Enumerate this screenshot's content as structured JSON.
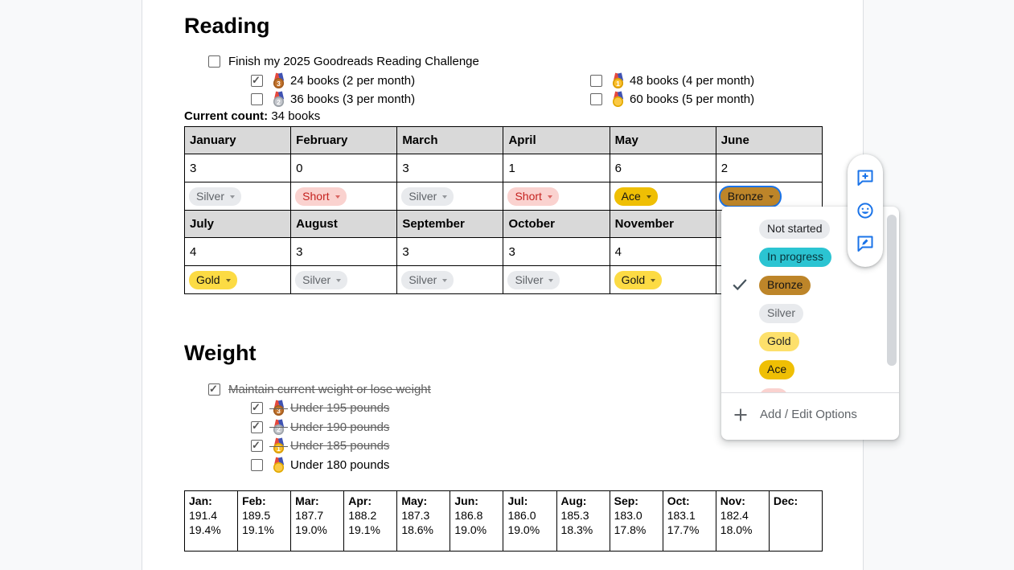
{
  "colors": {
    "page_background": "#f8f9fa",
    "surface": "#ffffff",
    "accent_blue": "#1a73e8",
    "table_header_bg": "#d9d9d9",
    "chip_silver_bg": "#e8eaed",
    "chip_short_bg": "#fad2cf",
    "chip_short_text": "#c5221f",
    "chip_ace_bg": "#efbf04",
    "chip_bronze_bg": "#bd8529",
    "chip_gold_bg": "#fcdb44",
    "chip_gold_light_bg": "#fde06b",
    "chip_in_progress_bg": "#2bc4d2",
    "chip_not_started_bg": "#e8eaed",
    "strikethrough_text": "#616161"
  },
  "reading": {
    "title": "Reading",
    "main_item": {
      "label": "Finish my 2025 Goodreads Reading Challenge",
      "checked": false,
      "struck": false
    },
    "sub_items_left": [
      {
        "medal": "bronze",
        "label": "24 books (2 per month)",
        "checked": true,
        "struck": false
      },
      {
        "medal": "silver",
        "label": "36 books (3 per month)",
        "checked": false,
        "struck": false
      }
    ],
    "sub_items_right": [
      {
        "medal": "gold",
        "label": "48 books (4 per month)",
        "checked": false,
        "struck": false
      },
      {
        "medal": "sports",
        "label": "60 books (5 per month)",
        "checked": false,
        "struck": false
      }
    ],
    "current_count_label": "Current count:",
    "current_count_value": " 34 books",
    "table": {
      "row_groups": [
        {
          "months": [
            "January",
            "February",
            "March",
            "April",
            "May",
            "June"
          ],
          "counts": [
            "3",
            "0",
            "3",
            "1",
            "6",
            "2"
          ],
          "chips": [
            {
              "label": "Silver",
              "style": "silver",
              "selected": false
            },
            {
              "label": "Short",
              "style": "short",
              "selected": false
            },
            {
              "label": "Silver",
              "style": "silver",
              "selected": false
            },
            {
              "label": "Short",
              "style": "short",
              "selected": false
            },
            {
              "label": "Ace",
              "style": "ace",
              "selected": false
            },
            {
              "label": "Bronze",
              "style": "bronze",
              "selected": true
            }
          ]
        },
        {
          "months": [
            "July",
            "August",
            "September",
            "October",
            "November",
            ""
          ],
          "counts": [
            "4",
            "3",
            "3",
            "3",
            "4",
            ""
          ],
          "chips": [
            {
              "label": "Gold",
              "style": "gold",
              "selected": false
            },
            {
              "label": "Silver",
              "style": "silver",
              "selected": false
            },
            {
              "label": "Silver",
              "style": "silver",
              "selected": false
            },
            {
              "label": "Silver",
              "style": "silver",
              "selected": false
            },
            {
              "label": "Gold",
              "style": "gold",
              "selected": false
            },
            null
          ]
        }
      ]
    }
  },
  "dropdown": {
    "options": [
      {
        "label": "Not started",
        "style": "notstarted",
        "checked": false,
        "partial": false
      },
      {
        "label": "In progress",
        "style": "inprogress",
        "checked": false,
        "partial": false
      },
      {
        "label": "Bronze",
        "style": "bronze",
        "checked": true,
        "partial": false
      },
      {
        "label": "Silver",
        "style": "silver",
        "checked": false,
        "partial": false
      },
      {
        "label": "Gold",
        "style": "goldlight",
        "checked": false,
        "partial": false
      },
      {
        "label": "Ace",
        "style": "ace",
        "checked": false,
        "partial": false
      },
      {
        "label": "",
        "style": "short",
        "checked": false,
        "partial": true
      }
    ],
    "add_edit_label": "Add / Edit Options"
  },
  "side_toolbar": {
    "buttons": [
      {
        "icon": "add-comment-icon"
      },
      {
        "icon": "emoji-reaction-icon"
      },
      {
        "icon": "suggest-edits-icon"
      }
    ]
  },
  "weight": {
    "title": "Weight",
    "main_item": {
      "label": "Maintain current weight or lose weight",
      "checked": true,
      "struck": true
    },
    "sub_items": [
      {
        "medal": "bronze",
        "label": "Under 195 pounds",
        "checked": true,
        "struck": true
      },
      {
        "medal": "silver",
        "label": "Under 190 pounds",
        "checked": true,
        "struck": true
      },
      {
        "medal": "gold",
        "label": "Under 185 pounds",
        "checked": true,
        "struck": true
      },
      {
        "medal": "sports",
        "label": "Under 180 pounds",
        "checked": false,
        "struck": false
      }
    ],
    "table": {
      "cells": [
        {
          "label": "Jan:",
          "weight": "191.4",
          "fat": "19.4%"
        },
        {
          "label": "Feb:",
          "weight": "189.5",
          "fat": "19.1%"
        },
        {
          "label": "Mar:",
          "weight": "187.7",
          "fat": "19.0%"
        },
        {
          "label": "Apr:",
          "weight": "188.2",
          "fat": "19.1%"
        },
        {
          "label": "May:",
          "weight": "187.3",
          "fat": "18.6%"
        },
        {
          "label": "Jun:",
          "weight": "186.8",
          "fat": "19.0%"
        },
        {
          "label": "Jul:",
          "weight": "186.0",
          "fat": "19.0%"
        },
        {
          "label": "Aug:",
          "weight": "185.3",
          "fat": "18.3%"
        },
        {
          "label": "Sep:",
          "weight": "183.0",
          "fat": "17.8%"
        },
        {
          "label": "Oct:",
          "weight": "183.1",
          "fat": "17.7%"
        },
        {
          "label": "Nov:",
          "weight": "182.4",
          "fat": "18.0%"
        },
        {
          "label": "Dec:",
          "weight": "",
          "fat": ""
        }
      ]
    }
  }
}
